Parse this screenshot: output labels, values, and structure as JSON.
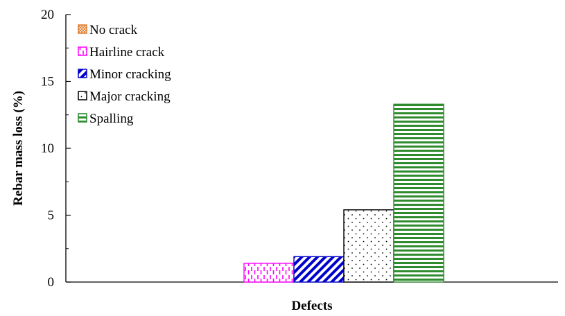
{
  "chart_data": {
    "type": "bar",
    "title": "",
    "xlabel": "Defects",
    "ylabel": "Rebar mass loss (%)",
    "ylim": [
      0,
      20
    ],
    "yticks": [
      0,
      5,
      10,
      15,
      20
    ],
    "grid": false,
    "legend_position": "top-left",
    "categories": [
      ""
    ],
    "series": [
      {
        "name": "No crack",
        "values": [
          0
        ],
        "color": "#e07b2a",
        "pattern": "crosshatch"
      },
      {
        "name": "Hairline crack",
        "values": [
          1.4
        ],
        "color": "#ff00ff",
        "pattern": "vertical-dash"
      },
      {
        "name": "Minor cracking",
        "values": [
          1.9
        ],
        "color": "#0000cc",
        "pattern": "diagonal"
      },
      {
        "name": "Major cracking",
        "values": [
          5.4
        ],
        "color": "#000000",
        "pattern": "dots"
      },
      {
        "name": "Spalling",
        "values": [
          13.3
        ],
        "color": "#2e8b2e",
        "pattern": "horizontal"
      }
    ]
  }
}
